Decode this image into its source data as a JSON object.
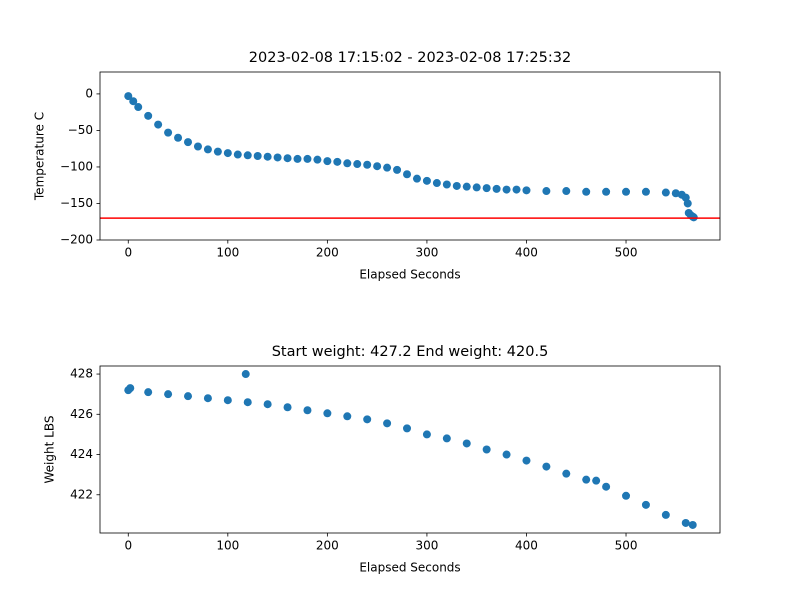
{
  "chart_data": [
    {
      "type": "scatter",
      "title": "2023-02-08 17:15:02 - 2023-02-08 17:25:32",
      "x_label": "Elapsed Seconds",
      "y_label": "Temperature C",
      "color": "#1f77b4",
      "x": [
        0,
        5,
        10,
        20,
        30,
        40,
        50,
        60,
        70,
        80,
        90,
        100,
        110,
        120,
        130,
        140,
        150,
        160,
        170,
        180,
        190,
        200,
        210,
        220,
        230,
        240,
        250,
        260,
        270,
        280,
        290,
        300,
        310,
        320,
        330,
        340,
        350,
        360,
        370,
        380,
        390,
        400,
        420,
        440,
        460,
        480,
        500,
        520,
        540,
        550,
        556,
        560,
        562,
        563,
        565,
        567,
        568
      ],
      "values": [
        -3,
        -10,
        -18,
        -30,
        -42,
        -53,
        -60,
        -66,
        -72,
        -76,
        -79,
        -81,
        -83,
        -84,
        -85,
        -86,
        -87,
        -88,
        -89,
        -89,
        -90,
        -92,
        -93,
        -95,
        -96,
        -97,
        -99,
        -101,
        -104,
        -110,
        -116,
        -119,
        -122,
        -124,
        -126,
        -127,
        -128,
        -129,
        -130,
        -131,
        -131,
        -132,
        -133,
        -133,
        -134,
        -134,
        -134,
        -134,
        -135,
        -136,
        -138,
        -142,
        -150,
        -163,
        -166,
        -168,
        -169
      ],
      "hline": {
        "value": -170,
        "color": "#ff0000"
      },
      "xlim": [
        -28.4,
        594.4
      ],
      "xticks": [
        0,
        100,
        200,
        300,
        400,
        500
      ],
      "ylim": [
        -200,
        30
      ],
      "yticks": [
        {
          "value": -200,
          "label": "−200"
        },
        {
          "value": -150,
          "label": "−150"
        },
        {
          "value": -100,
          "label": "−100"
        },
        {
          "value": -50,
          "label": "−50"
        },
        0
      ]
    },
    {
      "type": "scatter",
      "title": "Start weight: 427.2 End weight: 420.5",
      "x_label": "Elapsed Seconds",
      "y_label": "Weight LBS",
      "color": "#1f77b4",
      "x": [
        0,
        2,
        20,
        40,
        60,
        80,
        100,
        118,
        120,
        140,
        160,
        180,
        200,
        220,
        240,
        260,
        280,
        300,
        320,
        340,
        360,
        380,
        400,
        420,
        440,
        460,
        470,
        480,
        500,
        520,
        540,
        560,
        567
      ],
      "values": [
        427.2,
        427.3,
        427.1,
        427.0,
        426.9,
        426.8,
        426.7,
        428.0,
        426.6,
        426.5,
        426.35,
        426.2,
        426.05,
        425.9,
        425.75,
        425.55,
        425.3,
        425.0,
        424.8,
        424.55,
        424.25,
        424.0,
        423.7,
        423.4,
        423.05,
        422.75,
        422.7,
        422.4,
        421.95,
        421.5,
        421.0,
        420.6,
        420.5
      ],
      "xlim": [
        -28.4,
        594.4
      ],
      "xticks": [
        0,
        100,
        200,
        300,
        400,
        500
      ],
      "ylim": [
        420.1,
        428.4
      ],
      "yticks": [
        422,
        424,
        426,
        428
      ]
    }
  ]
}
